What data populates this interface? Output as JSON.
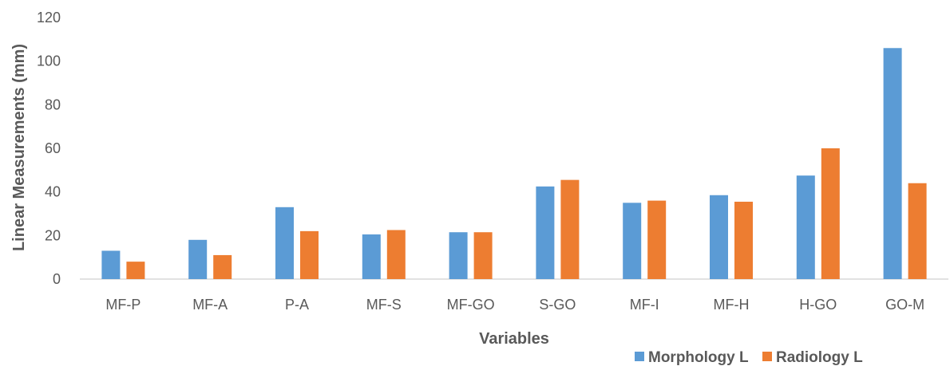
{
  "chart_data": {
    "type": "bar",
    "title": "",
    "xlabel": "Variables",
    "ylabel": "Linear Measurements (mm)",
    "ylim": [
      0,
      120
    ],
    "yticks": [
      0,
      20,
      40,
      60,
      80,
      100,
      120
    ],
    "grid": false,
    "legend_position": "bottom-right",
    "categories": [
      "MF-P",
      "MF-A",
      "P-A",
      "MF-S",
      "MF-GO",
      "S-GO",
      "MF-I",
      "MF-H",
      "H-GO",
      "GO-M"
    ],
    "series": [
      {
        "name": "Morphology L",
        "color": "#5B9BD5",
        "values": [
          13,
          18,
          33,
          20.5,
          21.5,
          42.5,
          35,
          38.5,
          47.5,
          106
        ]
      },
      {
        "name": "Radiology L",
        "color": "#ED7D31",
        "values": [
          8,
          11,
          22,
          22.5,
          21.5,
          45.5,
          36,
          35.5,
          60,
          44
        ]
      }
    ]
  }
}
